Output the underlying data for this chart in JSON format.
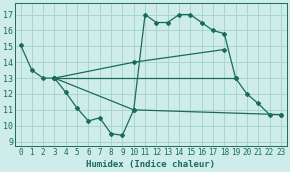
{
  "xlabel": "Humidex (Indice chaleur)",
  "bg_color": "#ceecea",
  "grid_color": "#a8d5d0",
  "line_color": "#1a6b5a",
  "xlim": [
    -0.5,
    23.5
  ],
  "ylim": [
    8.7,
    17.7
  ],
  "yticks": [
    9,
    10,
    11,
    12,
    13,
    14,
    15,
    16,
    17
  ],
  "xticks": [
    0,
    1,
    2,
    3,
    4,
    5,
    6,
    7,
    8,
    9,
    10,
    11,
    12,
    13,
    14,
    15,
    16,
    17,
    18,
    19,
    20,
    21,
    22,
    23
  ],
  "lines": [
    {
      "x": [
        0,
        1,
        2,
        3,
        4,
        5,
        6,
        7,
        8,
        9,
        10,
        11,
        12,
        13,
        14,
        15,
        16,
        17,
        18,
        19,
        20,
        21,
        22,
        23
      ],
      "y": [
        15.1,
        13.5,
        13.0,
        13.0,
        12.1,
        11.1,
        10.3,
        10.5,
        9.5,
        9.4,
        11.0,
        17.0,
        16.5,
        16.5,
        17.0,
        17.0,
        16.5,
        16.0,
        15.8,
        13.0,
        12.0,
        11.4,
        10.7,
        10.7
      ]
    },
    {
      "x": [
        3,
        19
      ],
      "y": [
        13.0,
        13.0
      ]
    },
    {
      "x": [
        3,
        10,
        18
      ],
      "y": [
        13.0,
        14.0,
        14.8
      ]
    },
    {
      "x": [
        3,
        10,
        23
      ],
      "y": [
        13.0,
        11.0,
        10.7
      ]
    }
  ]
}
